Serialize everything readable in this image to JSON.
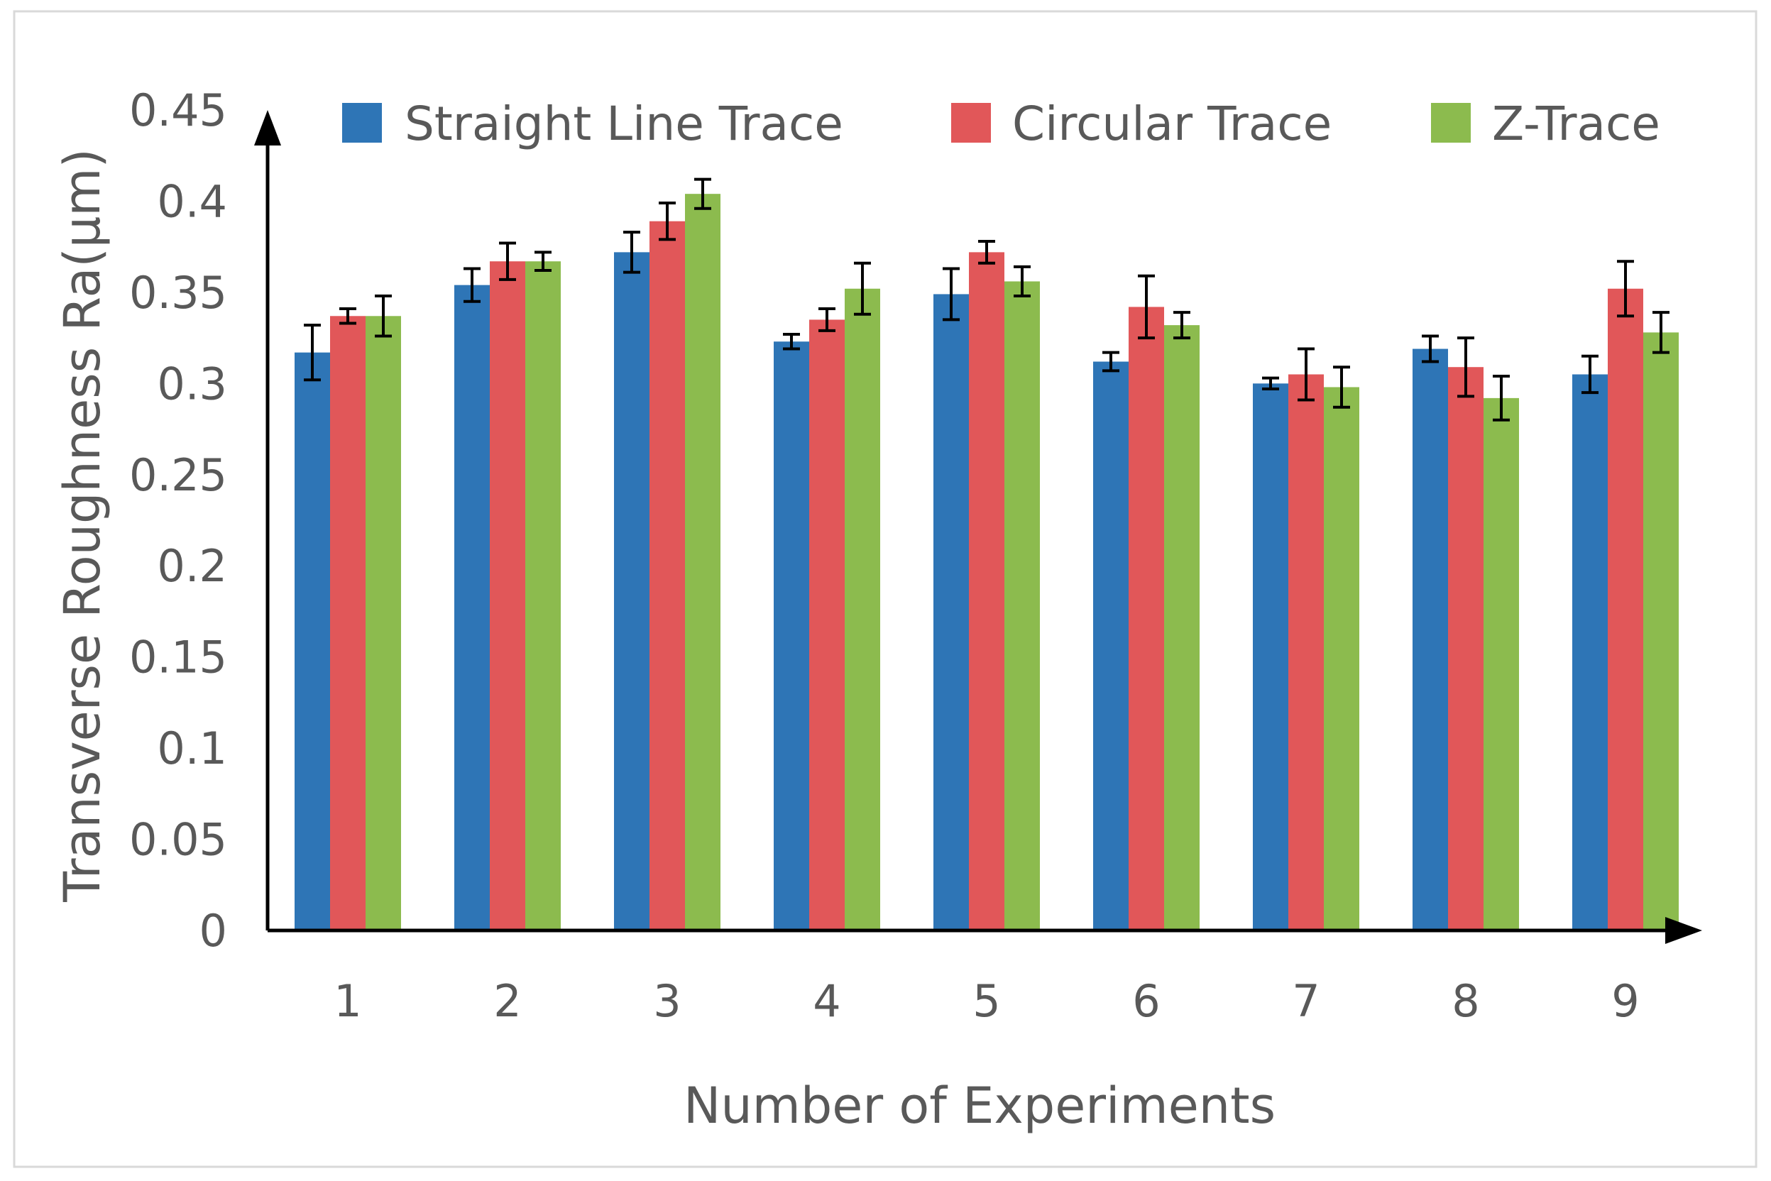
{
  "chart_data": {
    "type": "bar",
    "title": "",
    "xlabel": "Number of Experiments",
    "ylabel": "Transverse Roughness Ra(μm)",
    "ylim": [
      0,
      0.45
    ],
    "yticks": [
      "0",
      "0.05",
      "0.1",
      "0.15",
      "0.2",
      "0.25",
      "0.3",
      "0.35",
      "0.4",
      "0.45"
    ],
    "categories": [
      "1",
      "2",
      "3",
      "4",
      "5",
      "6",
      "7",
      "8",
      "9"
    ],
    "legend_position": "top",
    "series": [
      {
        "name": "Straight Line Trace",
        "color": "#2e75b6",
        "values": [
          0.317,
          0.354,
          0.372,
          0.323,
          0.349,
          0.312,
          0.3,
          0.319,
          0.305
        ],
        "errors": [
          0.015,
          0.009,
          0.011,
          0.004,
          0.014,
          0.005,
          0.003,
          0.007,
          0.01
        ]
      },
      {
        "name": "Circular Trace",
        "color": "#e15759",
        "values": [
          0.337,
          0.367,
          0.389,
          0.335,
          0.372,
          0.342,
          0.305,
          0.309,
          0.352
        ],
        "errors": [
          0.004,
          0.01,
          0.01,
          0.006,
          0.006,
          0.017,
          0.014,
          0.016,
          0.015
        ]
      },
      {
        "name": "Z-Trace",
        "color": "#8cbb4e",
        "values": [
          0.337,
          0.367,
          0.404,
          0.352,
          0.356,
          0.332,
          0.298,
          0.292,
          0.328
        ],
        "errors": [
          0.011,
          0.005,
          0.008,
          0.014,
          0.008,
          0.007,
          0.011,
          0.012,
          0.011
        ]
      }
    ]
  }
}
